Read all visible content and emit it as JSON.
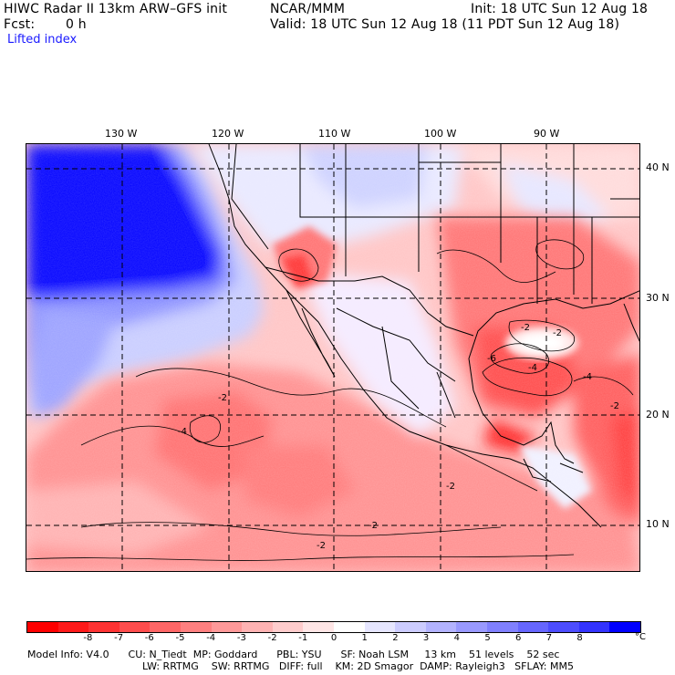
{
  "header": {
    "title": "HIWC Radar II 13km ARW–GFS init",
    "org": "NCAR/MMM",
    "init": "Init: 18 UTC Sun 12 Aug 18",
    "fcst_label": "Fcst:",
    "fcst_value": "0 h",
    "valid": "Valid: 18 UTC Sun 12 Aug 18 (11 PDT Sun 12 Aug 18)",
    "field": "Lifted index"
  },
  "map": {
    "longitudes": [
      "130 W",
      "120 W",
      "110 W",
      "100 W",
      "90 W"
    ],
    "latitudes": [
      "40 N",
      "30 N",
      "20 N",
      "10 N"
    ],
    "contour_labels": [
      "-2",
      "-4",
      "-6",
      "-2",
      "-2",
      "-2",
      "-2",
      "-2",
      "-4",
      "-4",
      "-2"
    ]
  },
  "colorbar": {
    "labels": [
      "-8",
      "-7",
      "-6",
      "-5",
      "-4",
      "-3",
      "-2",
      "-1",
      "0",
      "1",
      "2",
      "3",
      "4",
      "5",
      "6",
      "7",
      "8"
    ],
    "unit": "°C",
    "colors": [
      "#ff0000",
      "#ff1a1a",
      "#ff3333",
      "#ff4d4d",
      "#ff6666",
      "#ff8080",
      "#ff9999",
      "#ffb3b3",
      "#ffcccc",
      "#ffe6e6",
      "#ffffff",
      "#e6e6ff",
      "#ccccff",
      "#b3b3ff",
      "#9999ff",
      "#8080ff",
      "#6666ff",
      "#4d4dff",
      "#3333ff",
      "#0000ff"
    ]
  },
  "footer": {
    "line1": "Model Info: V4.0      CU: N_Tiedt  MP: Goddard      PBL: YSU      SF: Noah LSM     13 km    51 levels    52 sec",
    "line2": "LW: RRTMG    SW: RRTMG   DIFF: full    KM: 2D Smagor  DAMP: Rayleigh3   SFLAY: MM5"
  }
}
